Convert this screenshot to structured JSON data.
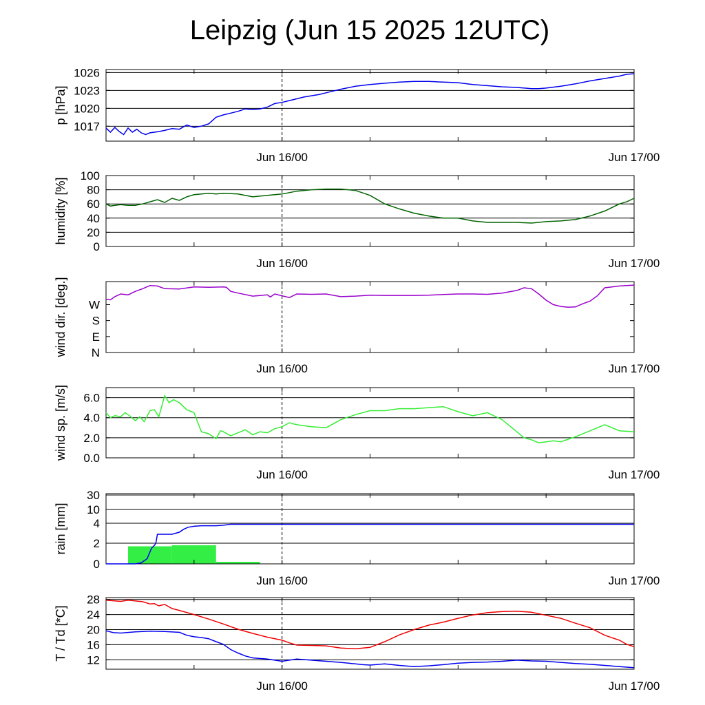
{
  "title": "Leipzig (Jun 15 2025 12UTC)",
  "time_axis": {
    "start_hour": 0,
    "end_hour": 36,
    "tick_labels": [
      {
        "label": "Jun 16/00",
        "hour": 12
      },
      {
        "label": "Jun 17/00",
        "hour": 36
      }
    ],
    "dashed_at_hour": 12
  },
  "chart_data": [
    {
      "type": "line",
      "ylabel": "p [hPa]",
      "ylim": [
        1014.5,
        1026.5
      ],
      "yticks": [
        1017,
        1020,
        1023,
        1026
      ],
      "series": [
        {
          "color": "#0000ee",
          "x": [
            0,
            0.3,
            0.6,
            0.9,
            1.2,
            1.5,
            1.8,
            2.1,
            2.4,
            2.7,
            3,
            3.6,
            4,
            4.5,
            5,
            5.5,
            6,
            6.5,
            7,
            7.5,
            8,
            8.5,
            9,
            9.5,
            10,
            10.5,
            11,
            11.5,
            12,
            12.5,
            13,
            13.5,
            14,
            14.5,
            15,
            15.5,
            16,
            17,
            18,
            19,
            20,
            21,
            22,
            23,
            24,
            25,
            26,
            27,
            28,
            29,
            29.5,
            30,
            31,
            32,
            33,
            34,
            35,
            35.5,
            36
          ],
          "y": [
            1016.7,
            1016.0,
            1016.8,
            1016.1,
            1015.6,
            1016.7,
            1016.0,
            1016.5,
            1015.9,
            1015.6,
            1015.9,
            1016.1,
            1016.3,
            1016.6,
            1016.5,
            1017.2,
            1016.8,
            1017.0,
            1017.4,
            1018.5,
            1018.9,
            1019.2,
            1019.5,
            1019.9,
            1019.8,
            1019.9,
            1020.2,
            1020.8,
            1021.0,
            1021.3,
            1021.6,
            1021.9,
            1022.1,
            1022.3,
            1022.6,
            1022.9,
            1023.2,
            1023.7,
            1024.0,
            1024.2,
            1024.4,
            1024.5,
            1024.5,
            1024.4,
            1024.3,
            1024.0,
            1023.8,
            1023.6,
            1023.5,
            1023.3,
            1023.3,
            1023.4,
            1023.7,
            1024.1,
            1024.6,
            1025.0,
            1025.4,
            1025.7,
            1025.8
          ]
        }
      ]
    },
    {
      "type": "line",
      "ylabel": "humidity [%]",
      "ylim": [
        0,
        100
      ],
      "yticks": [
        0,
        20,
        40,
        60,
        80,
        100
      ],
      "series": [
        {
          "color": "#006400",
          "x": [
            0,
            0.3,
            0.6,
            1,
            1.5,
            2,
            2.5,
            3,
            3.5,
            4,
            4.5,
            5,
            5.5,
            6,
            6.5,
            7,
            7.5,
            8,
            9,
            10,
            11,
            12,
            13,
            14,
            15,
            16,
            17,
            18,
            19,
            20,
            21,
            22,
            23,
            24,
            25,
            26,
            27,
            28,
            29,
            30,
            31,
            32,
            33,
            34,
            35,
            35.5,
            36
          ],
          "y": [
            60,
            57,
            58,
            59,
            58,
            58,
            60,
            63,
            66,
            62,
            68,
            65,
            70,
            73,
            74,
            75,
            74,
            75,
            74,
            70,
            72,
            74,
            78,
            80,
            81,
            81,
            79,
            72,
            60,
            53,
            47,
            43,
            40,
            40,
            36,
            34,
            34,
            34,
            33,
            35,
            36,
            38,
            43,
            50,
            60,
            63,
            68
          ]
        }
      ]
    },
    {
      "type": "line",
      "ylabel": "wind dir. [deg.]",
      "ylim": [
        0,
        400
      ],
      "ytick_values": [
        0,
        90,
        180,
        270
      ],
      "ytick_labels": [
        "N",
        "E",
        "S",
        "W"
      ],
      "series": [
        {
          "color": "#9900cc",
          "x": [
            0,
            0.3,
            0.6,
            1,
            1.5,
            2,
            2.5,
            3,
            3.5,
            4,
            5,
            6,
            7,
            8,
            8.2,
            8.5,
            9,
            10,
            11,
            11.2,
            11.5,
            12,
            12.5,
            13,
            14,
            15,
            16,
            17,
            18,
            19,
            20,
            21,
            22,
            23,
            24,
            25,
            26,
            27,
            28,
            28.5,
            29,
            29.5,
            30,
            30.5,
            31,
            31.5,
            32,
            32.5,
            33,
            33.5,
            34,
            35,
            36
          ],
          "y": [
            300,
            297,
            315,
            330,
            325,
            345,
            360,
            378,
            375,
            360,
            358,
            370,
            368,
            370,
            368,
            345,
            335,
            318,
            325,
            313,
            330,
            320,
            310,
            330,
            328,
            330,
            315,
            318,
            323,
            322,
            322,
            322,
            323,
            327,
            330,
            330,
            328,
            335,
            350,
            365,
            360,
            330,
            295,
            270,
            260,
            255,
            257,
            275,
            290,
            320,
            365,
            375,
            380
          ]
        }
      ]
    },
    {
      "type": "line",
      "ylabel": "wind sp. [m/s]",
      "ylim": [
        0,
        7
      ],
      "yticks": [
        0.0,
        2.0,
        4.0,
        6.0
      ],
      "series": [
        {
          "color": "#33ee33",
          "x": [
            0,
            0.3,
            0.6,
            1,
            1.3,
            1.6,
            2,
            2.3,
            2.6,
            3,
            3.3,
            3.6,
            4,
            4.3,
            4.6,
            5,
            5.5,
            6,
            6.5,
            7,
            7.5,
            7.8,
            8,
            8.5,
            9,
            9.5,
            10,
            10.5,
            11,
            11.5,
            12,
            12.5,
            13,
            14,
            15,
            16,
            17,
            18,
            19,
            20,
            21,
            22,
            23,
            24,
            25,
            26,
            27,
            28,
            28.5,
            29,
            29.5,
            30,
            30.5,
            31,
            32,
            33,
            34,
            35,
            36
          ],
          "y": [
            4.5,
            4.0,
            4.2,
            4.1,
            4.5,
            4.2,
            3.7,
            4.1,
            3.6,
            4.7,
            4.8,
            4.1,
            6.2,
            5.5,
            5.8,
            5.5,
            4.8,
            4.5,
            2.6,
            2.4,
            1.9,
            2.7,
            2.6,
            2.2,
            2.5,
            2.8,
            2.3,
            2.6,
            2.5,
            2.9,
            3.1,
            3.5,
            3.3,
            3.1,
            3.0,
            3.8,
            4.3,
            4.7,
            4.7,
            4.9,
            4.9,
            5.0,
            5.1,
            4.6,
            4.2,
            4.5,
            3.8,
            2.6,
            2.0,
            1.8,
            1.5,
            1.6,
            1.7,
            1.6,
            2.1,
            2.7,
            3.3,
            2.7,
            2.6
          ]
        }
      ]
    },
    {
      "type": "bar+line",
      "ylabel": "rain [mm]",
      "ytick_values": [
        0,
        2,
        4,
        10,
        30
      ],
      "ytick_labels": [
        "0",
        "2",
        "4",
        "10",
        "30"
      ],
      "bars": {
        "color": "#33ee44",
        "bins": [
          {
            "from": 1.5,
            "to": 4.5,
            "value": 1.7
          },
          {
            "from": 4.5,
            "to": 7.5,
            "value": 1.8
          },
          {
            "from": 7.5,
            "to": 10.5,
            "value": 0.2
          }
        ]
      },
      "series": [
        {
          "color": "#0000ee",
          "name": "accumulated",
          "x": [
            0,
            2,
            2.4,
            2.8,
            3.1,
            3.3,
            3.4,
            3.5,
            4.5,
            5,
            5.3,
            5.6,
            6,
            6.5,
            7,
            7.5,
            8,
            8.5,
            9,
            36
          ],
          "y": [
            0,
            0,
            0.1,
            0.5,
            1.5,
            1.8,
            2.0,
            2.9,
            2.9,
            3.1,
            3.4,
            3.6,
            3.7,
            3.75,
            3.75,
            3.75,
            3.8,
            3.9,
            3.9,
            3.9
          ]
        }
      ]
    },
    {
      "type": "line",
      "ylabel": "T / Td [*C]",
      "ylim": [
        9.5,
        28.5
      ],
      "yticks": [
        12,
        16,
        20,
        24,
        28
      ],
      "series": [
        {
          "color": "#ee0000",
          "x": [
            0,
            1,
            1.5,
            2,
            2.5,
            3,
            3.3,
            3.6,
            4,
            4.5,
            5,
            6,
            7,
            8,
            9,
            10,
            11,
            12,
            12.5,
            13,
            14,
            15,
            16,
            17,
            18,
            19,
            20,
            21,
            22,
            23,
            24,
            25,
            26,
            27,
            28,
            29,
            30,
            31,
            32,
            33,
            34,
            35,
            35.5,
            36
          ],
          "y": [
            27.8,
            27.5,
            27.8,
            27.6,
            27.4,
            26.8,
            26.9,
            26.3,
            26.7,
            25.6,
            25.1,
            24.0,
            22.8,
            21.5,
            20.1,
            19.0,
            18.0,
            17.2,
            16.5,
            15.9,
            15.8,
            15.7,
            15.1,
            14.9,
            15.3,
            16.8,
            18.6,
            20.0,
            21.2,
            22.0,
            23.0,
            23.9,
            24.5,
            24.8,
            24.9,
            24.6,
            23.8,
            23.0,
            21.7,
            20.5,
            18.5,
            17.2,
            16.1,
            15.5
          ]
        },
        {
          "color": "#0000ee",
          "x": [
            0,
            0.5,
            1,
            2,
            3,
            4,
            5,
            5.5,
            6,
            6.5,
            7,
            7.5,
            8,
            8.5,
            9,
            9.5,
            10,
            11,
            12,
            13,
            14,
            15,
            16,
            17,
            17.5,
            18,
            19,
            20,
            21,
            22,
            23,
            24,
            25,
            26,
            27,
            28,
            29,
            30,
            31,
            32,
            33,
            34,
            35,
            36
          ],
          "y": [
            19.7,
            19.2,
            19.1,
            19.4,
            19.6,
            19.5,
            19.3,
            18.5,
            18.1,
            17.9,
            17.6,
            16.8,
            16.1,
            14.7,
            13.8,
            13.0,
            12.5,
            12.2,
            11.6,
            12.2,
            11.9,
            11.6,
            11.3,
            10.9,
            10.7,
            10.6,
            10.9,
            10.5,
            10.2,
            10.4,
            10.7,
            11.1,
            11.3,
            11.4,
            11.6,
            11.9,
            11.7,
            11.6,
            11.3,
            11.0,
            10.8,
            10.5,
            10.2,
            9.9
          ]
        }
      ]
    }
  ]
}
